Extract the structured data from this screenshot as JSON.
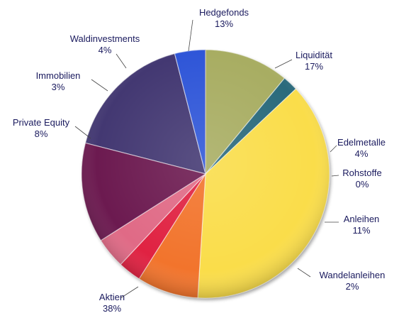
{
  "chart_data": {
    "type": "pie",
    "title": "",
    "slices": [
      {
        "label": "Liquidität",
        "value": 17,
        "value_label": "17%",
        "color": "#433872"
      },
      {
        "label": "Edelmetalle",
        "value": 4,
        "value_label": "4%",
        "color": "#2f56d8"
      },
      {
        "label": "Rohstoffe",
        "value": 0,
        "value_label": "0%",
        "color": "#5a4fa0"
      },
      {
        "label": "Anleihen",
        "value": 11,
        "value_label": "11%",
        "color": "#a8ad62"
      },
      {
        "label": "Wandelanleihen",
        "value": 2,
        "value_label": "2%",
        "color": "#2a6a7c"
      },
      {
        "label": "Aktien",
        "value": 38,
        "value_label": "38%",
        "color": "#fadd4a"
      },
      {
        "label": "Private Equity",
        "value": 8,
        "value_label": "8%",
        "color": "#f2742c"
      },
      {
        "label": "Immobilien",
        "value": 3,
        "value_label": "3%",
        "color": "#e02242"
      },
      {
        "label": "Waldinvestments",
        "value": 4,
        "value_label": "4%",
        "color": "#e06a86"
      },
      {
        "label": "Hedgefonds",
        "value": 13,
        "value_label": "13%",
        "color": "#6c1a50"
      }
    ]
  }
}
